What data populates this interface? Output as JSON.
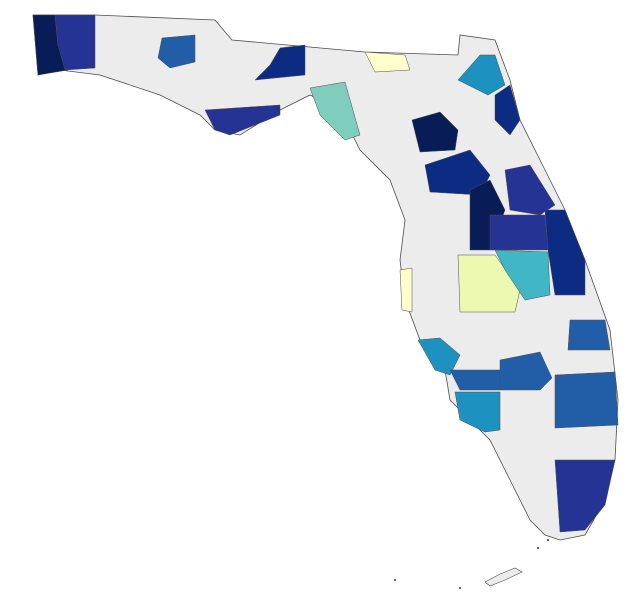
{
  "map": {
    "base_color": "#ececec",
    "border_color": "#4d4d4d",
    "regions": [
      {
        "color": "#081d58"
      },
      {
        "color": "#253494"
      },
      {
        "color": "#225ea8"
      },
      {
        "color": "#0c2c84"
      },
      {
        "color": "#253494"
      },
      {
        "color": "#7fcdbb"
      },
      {
        "color": "#ffffcc"
      },
      {
        "color": "#1d91c0"
      },
      {
        "color": "#0c2c84"
      },
      {
        "color": "#081d58"
      },
      {
        "color": "#0c2c84"
      },
      {
        "color": "#253494"
      },
      {
        "color": "#081d58"
      },
      {
        "color": "#253494"
      },
      {
        "color": "#0c2c84"
      },
      {
        "color": "#edf8b1"
      },
      {
        "color": "#41b6c4"
      },
      {
        "color": "#ffffcc"
      },
      {
        "color": "#225ea8"
      },
      {
        "color": "#1d91c0"
      },
      {
        "color": "#225ea8"
      },
      {
        "color": "#225ea8"
      },
      {
        "color": "#225ea8"
      },
      {
        "color": "#1d91c0"
      },
      {
        "color": "#253494"
      }
    ]
  }
}
